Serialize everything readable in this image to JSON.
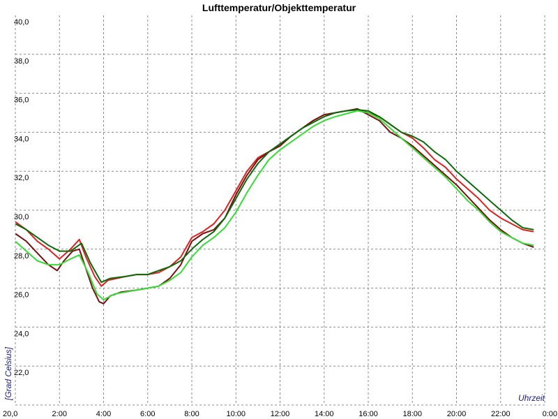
{
  "chart_data": {
    "type": "line",
    "title": "Lufttemperatur/Objekttemperatur",
    "xlabel": "Uhrzeit",
    "ylabel": "[Grad Celsius]",
    "ylim": [
      20.0,
      40.0
    ],
    "xlim": [
      0,
      24
    ],
    "x_ticks": [
      {
        "x": 0,
        "label": "20,0"
      },
      {
        "x": 2,
        "label": "2:00"
      },
      {
        "x": 4,
        "label": "4:00"
      },
      {
        "x": 6,
        "label": "6:00"
      },
      {
        "x": 8,
        "label": "8:00"
      },
      {
        "x": 10,
        "label": "10:00"
      },
      {
        "x": 12,
        "label": "12:00"
      },
      {
        "x": 14,
        "label": "14:00"
      },
      {
        "x": 16,
        "label": "16:00"
      },
      {
        "x": 18,
        "label": "18:00"
      },
      {
        "x": 20,
        "label": "20:00"
      },
      {
        "x": 22,
        "label": "22:00"
      },
      {
        "x": 24,
        "label": "0:00"
      }
    ],
    "y_ticks": [
      {
        "y": 22,
        "label": "22,0"
      },
      {
        "y": 24,
        "label": "24,0"
      },
      {
        "y": 26,
        "label": "26,0"
      },
      {
        "y": 28,
        "label": "28,0"
      },
      {
        "y": 30,
        "label": "30,0"
      },
      {
        "y": 32,
        "label": "32,0"
      },
      {
        "y": 34,
        "label": "34,0"
      },
      {
        "y": 36,
        "label": "36,0"
      },
      {
        "y": 38,
        "label": "38,0"
      },
      {
        "y": 40,
        "label": "40,0"
      }
    ],
    "grid": true,
    "series": [
      {
        "color": "#e02020",
        "points": [
          [
            0,
            29.4
          ],
          [
            0.5,
            29.0
          ],
          [
            1.0,
            28.4
          ],
          [
            1.5,
            28.0
          ],
          [
            2.0,
            27.5
          ],
          [
            2.5,
            28.0
          ],
          [
            2.9,
            28.5
          ],
          [
            3.2,
            27.6
          ],
          [
            3.6,
            26.6
          ],
          [
            3.9,
            26.1
          ],
          [
            4.2,
            26.4
          ],
          [
            4.6,
            26.5
          ],
          [
            5.0,
            26.6
          ],
          [
            5.5,
            26.7
          ],
          [
            6.0,
            26.7
          ],
          [
            6.5,
            26.8
          ],
          [
            7.0,
            27.1
          ],
          [
            7.5,
            27.6
          ],
          [
            8.0,
            28.6
          ],
          [
            8.5,
            28.9
          ],
          [
            9.0,
            29.3
          ],
          [
            9.5,
            30.0
          ],
          [
            10.0,
            31.0
          ],
          [
            10.5,
            32.0
          ],
          [
            11.0,
            32.7
          ],
          [
            11.5,
            33.0
          ],
          [
            12.0,
            33.3
          ],
          [
            12.5,
            33.8
          ],
          [
            13.0,
            34.2
          ],
          [
            13.5,
            34.6
          ],
          [
            14.0,
            34.9
          ],
          [
            14.5,
            35.0
          ],
          [
            15.0,
            35.1
          ],
          [
            15.5,
            35.2
          ],
          [
            16.0,
            35.0
          ],
          [
            16.5,
            34.8
          ],
          [
            17.0,
            34.4
          ],
          [
            17.5,
            34.0
          ],
          [
            18.0,
            33.7
          ],
          [
            18.5,
            33.2
          ],
          [
            19.0,
            32.6
          ],
          [
            19.5,
            32.2
          ],
          [
            20.0,
            31.6
          ],
          [
            20.5,
            31.1
          ],
          [
            21.0,
            30.6
          ],
          [
            21.5,
            30.0
          ],
          [
            22.0,
            29.6
          ],
          [
            22.5,
            29.3
          ],
          [
            23.0,
            29.0
          ],
          [
            23.5,
            28.9
          ]
        ]
      },
      {
        "color": "#7a0f0f",
        "points": [
          [
            0,
            28.8
          ],
          [
            0.5,
            28.4
          ],
          [
            1.0,
            27.8
          ],
          [
            1.5,
            27.2
          ],
          [
            1.9,
            26.9
          ],
          [
            2.2,
            27.4
          ],
          [
            2.6,
            27.9
          ],
          [
            2.9,
            28.0
          ],
          [
            3.2,
            27.0
          ],
          [
            3.5,
            26.0
          ],
          [
            3.8,
            25.3
          ],
          [
            4.0,
            25.2
          ],
          [
            4.3,
            25.6
          ],
          [
            4.8,
            25.8
          ],
          [
            5.5,
            25.9
          ],
          [
            6.0,
            26.0
          ],
          [
            6.5,
            26.1
          ],
          [
            7.0,
            26.5
          ],
          [
            7.5,
            27.2
          ],
          [
            8.0,
            28.4
          ],
          [
            8.5,
            28.8
          ],
          [
            9.0,
            29.0
          ],
          [
            9.5,
            29.6
          ],
          [
            10.0,
            30.8
          ],
          [
            10.5,
            31.8
          ],
          [
            11.0,
            32.6
          ],
          [
            11.5,
            33.0
          ],
          [
            12.0,
            33.3
          ],
          [
            12.5,
            33.8
          ],
          [
            13.0,
            34.2
          ],
          [
            13.5,
            34.6
          ],
          [
            14.0,
            34.9
          ],
          [
            14.5,
            35.0
          ],
          [
            15.0,
            35.1
          ],
          [
            15.5,
            35.2
          ],
          [
            16.0,
            34.9
          ],
          [
            16.5,
            34.6
          ],
          [
            17.0,
            34.0
          ],
          [
            17.5,
            33.7
          ],
          [
            18.0,
            33.3
          ],
          [
            18.5,
            32.8
          ],
          [
            19.0,
            32.3
          ],
          [
            19.5,
            31.8
          ],
          [
            20.0,
            31.3
          ],
          [
            20.5,
            30.7
          ],
          [
            21.0,
            30.1
          ],
          [
            21.5,
            29.5
          ],
          [
            22.0,
            29.0
          ],
          [
            22.5,
            28.6
          ],
          [
            23.0,
            28.3
          ],
          [
            23.5,
            28.1
          ]
        ]
      },
      {
        "color": "#0b6b0b",
        "points": [
          [
            0,
            29.3
          ],
          [
            0.5,
            29.0
          ],
          [
            1.0,
            28.6
          ],
          [
            1.5,
            28.2
          ],
          [
            2.0,
            27.9
          ],
          [
            2.5,
            27.9
          ],
          [
            3.0,
            28.3
          ],
          [
            3.4,
            27.3
          ],
          [
            3.9,
            26.3
          ],
          [
            4.3,
            26.5
          ],
          [
            5.0,
            26.6
          ],
          [
            5.5,
            26.7
          ],
          [
            6.0,
            26.7
          ],
          [
            6.5,
            26.9
          ],
          [
            7.0,
            27.1
          ],
          [
            7.5,
            27.4
          ],
          [
            8.0,
            28.0
          ],
          [
            8.5,
            28.5
          ],
          [
            9.0,
            28.9
          ],
          [
            9.5,
            29.6
          ],
          [
            10.0,
            30.6
          ],
          [
            10.5,
            31.6
          ],
          [
            11.0,
            32.4
          ],
          [
            11.5,
            33.0
          ],
          [
            12.0,
            33.4
          ],
          [
            12.5,
            33.8
          ],
          [
            13.0,
            34.2
          ],
          [
            13.5,
            34.5
          ],
          [
            14.0,
            34.8
          ],
          [
            14.5,
            35.0
          ],
          [
            15.0,
            35.1
          ],
          [
            15.5,
            35.15
          ],
          [
            16.0,
            35.1
          ],
          [
            16.5,
            34.8
          ],
          [
            17.0,
            34.4
          ],
          [
            17.5,
            34.0
          ],
          [
            18.0,
            33.8
          ],
          [
            18.5,
            33.5
          ],
          [
            19.0,
            33.0
          ],
          [
            19.5,
            32.6
          ],
          [
            20.0,
            32.0
          ],
          [
            20.5,
            31.5
          ],
          [
            21.0,
            31.0
          ],
          [
            21.5,
            30.5
          ],
          [
            22.0,
            30.0
          ],
          [
            22.5,
            29.5
          ],
          [
            23.0,
            29.1
          ],
          [
            23.5,
            29.0
          ]
        ]
      },
      {
        "color": "#33dd33",
        "points": [
          [
            0,
            28.4
          ],
          [
            0.5,
            27.9
          ],
          [
            1.0,
            27.4
          ],
          [
            1.5,
            27.2
          ],
          [
            2.0,
            27.2
          ],
          [
            2.5,
            27.5
          ],
          [
            2.9,
            27.7
          ],
          [
            3.3,
            26.8
          ],
          [
            3.7,
            25.7
          ],
          [
            4.0,
            25.4
          ],
          [
            4.5,
            25.7
          ],
          [
            5.0,
            25.8
          ],
          [
            5.5,
            25.9
          ],
          [
            6.0,
            26.0
          ],
          [
            6.5,
            26.1
          ],
          [
            7.0,
            26.4
          ],
          [
            7.5,
            26.8
          ],
          [
            8.0,
            27.6
          ],
          [
            8.5,
            28.2
          ],
          [
            9.0,
            28.6
          ],
          [
            9.5,
            29.1
          ],
          [
            10.0,
            29.9
          ],
          [
            10.5,
            30.9
          ],
          [
            11.0,
            31.8
          ],
          [
            11.5,
            32.6
          ],
          [
            12.0,
            33.1
          ],
          [
            12.5,
            33.5
          ],
          [
            13.0,
            33.9
          ],
          [
            13.5,
            34.3
          ],
          [
            14.0,
            34.6
          ],
          [
            14.5,
            34.8
          ],
          [
            15.0,
            34.95
          ],
          [
            15.5,
            35.1
          ],
          [
            16.0,
            35.0
          ],
          [
            16.5,
            34.7
          ],
          [
            17.0,
            34.2
          ],
          [
            17.5,
            33.7
          ],
          [
            18.0,
            33.2
          ],
          [
            18.5,
            32.7
          ],
          [
            19.0,
            32.2
          ],
          [
            19.5,
            31.7
          ],
          [
            20.0,
            31.1
          ],
          [
            20.5,
            30.5
          ],
          [
            21.0,
            30.0
          ],
          [
            21.5,
            29.4
          ],
          [
            22.0,
            28.9
          ],
          [
            22.5,
            28.6
          ],
          [
            23.0,
            28.3
          ],
          [
            23.5,
            28.2
          ]
        ]
      }
    ]
  }
}
